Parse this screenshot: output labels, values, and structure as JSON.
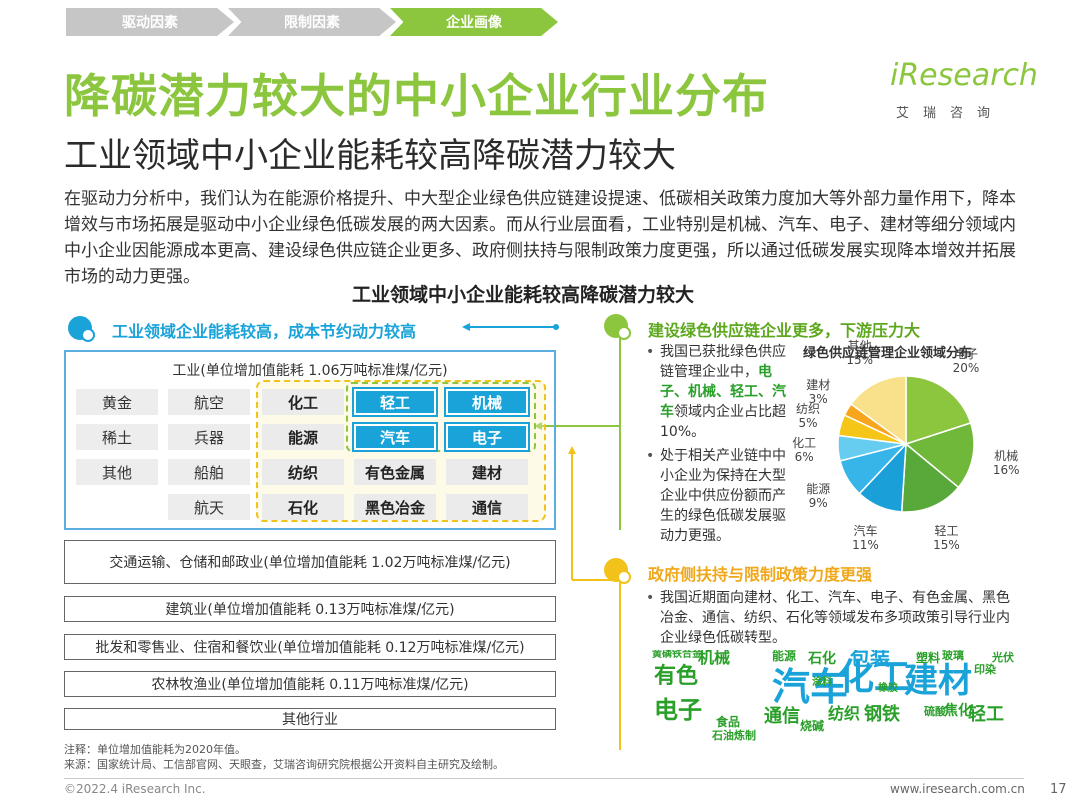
{
  "breadcrumb": [
    "驱动因素",
    "限制因素",
    "企业画像"
  ],
  "title": "降碳潜力较大的中小企业行业分布",
  "subtitle": "工业领域中小企业能耗较高降碳潜力较大",
  "logo": {
    "mark": "iResearch",
    "sub": "艾瑞咨询"
  },
  "intro": "在驱动力分析中，我们认为在能源价格提升、中大型企业绿色供应链建设提速、低碳相关政策力度加大等外部力量作用下，降本增效与市场拓展是驱动中小企业绿色低碳发展的两大因素。而从行业层面看，工业特别是机械、汽车、电子、建材等细分领域内中小企业因能源成本更高、建设绿色供应链企业更多、政府侧扶持与限制政策力度更强，所以通过低碳发展实现降本增效并拓展市场的动力更强。",
  "figure_title": "工业领域中小企业能耗较高降碳潜力较大",
  "left": {
    "heading": "工业领域企业能耗较高，成本节约动力较高",
    "industry_caption": "工业(单位增加值能耗 1.06万吨标准煤/亿元)",
    "grid": [
      [
        "黄金",
        "航空",
        "化工",
        "轻工",
        "机械"
      ],
      [
        "稀土",
        "兵器",
        "能源",
        "汽车",
        "电子"
      ],
      [
        "其他",
        "船舶",
        "纺织",
        "有色金属",
        "建材"
      ],
      [
        "",
        "航天",
        "石化",
        "黑色冶金",
        "通信"
      ]
    ],
    "rows": [
      "交通运输、仓储和邮政业(单位增加值能耗 1.02万吨标准煤/亿元)",
      "建筑业(单位增加值能耗 0.13万吨标准煤/亿元)",
      "批发和零售业、住宿和餐饮业(单位增加值能耗 0.12万吨标准煤/亿元)",
      "农林牧渔业(单位增加值能耗 0.11万吨标准煤/亿元)",
      "其他行业"
    ]
  },
  "right_top": {
    "heading": "建设绿色供应链企业更多，下游压力大",
    "b1_prefix": "我国已获批绿色供应链管理企业中，",
    "b1_em": "电子、机械、轻工、汽车",
    "b1_suffix": "领域内企业占比超10%。",
    "b2": "处于相关产业链中中小企业为保持在大型企业中供应份额而产生的绿色低碳发展驱动力更强。"
  },
  "chart_data": {
    "type": "pie",
    "title": "绿色供应链管理企业领域分布",
    "slices": [
      {
        "label": "电子",
        "value": 20,
        "color": "#8cc63f"
      },
      {
        "label": "机械",
        "value": 16,
        "color": "#6fb83a"
      },
      {
        "label": "轻工",
        "value": 15,
        "color": "#58a83a"
      },
      {
        "label": "汽车",
        "value": 11,
        "color": "#1b9fd9"
      },
      {
        "label": "能源",
        "value": 9,
        "color": "#37b5e8"
      },
      {
        "label": "化工",
        "value": 6,
        "color": "#66ccf0"
      },
      {
        "label": "纺织",
        "value": 5,
        "color": "#f5c518"
      },
      {
        "label": "建材",
        "value": 3,
        "color": "#f7a51c"
      },
      {
        "label": "其他",
        "value": 15,
        "color": "#f9e08a"
      }
    ]
  },
  "right_bottom": {
    "heading": "政府侧扶持与限制政策力度更强",
    "bullet": "我国近期面向建材、化工、汽车、电子、有色金属、黑色冶金、通信、纺织、石化等领域发布多项政策引导行业内企业绿色低碳转型。"
  },
  "wordcloud": [
    "汽车",
    "化工",
    "建材",
    "有色",
    "电子",
    "包装",
    "通信",
    "纺织",
    "钢铁",
    "轻工",
    "机械",
    "石化",
    "焦化",
    "能源",
    "塑料",
    "涂料",
    "橡胶",
    "食品",
    "石油炼制",
    "烧碱",
    "黄磷",
    "铁合金",
    "玻璃",
    "硫酸",
    "光伏",
    "印染"
  ],
  "notes": [
    "注释：单位增加值能耗为2020年值。",
    "来源：国家统计局、工信部官网、天眼查，艾瑞咨询研究院根据公开资料自主研究及绘制。"
  ],
  "footer": {
    "left": "©2022.4 iResearch Inc.",
    "right": "www.iresearch.com.cn",
    "page": "17"
  },
  "colors": {
    "green": "#8cc63f",
    "blue": "#1aa3d9",
    "yellow": "#f2c21a"
  },
  "icons": [
    "bubble-icon"
  ]
}
